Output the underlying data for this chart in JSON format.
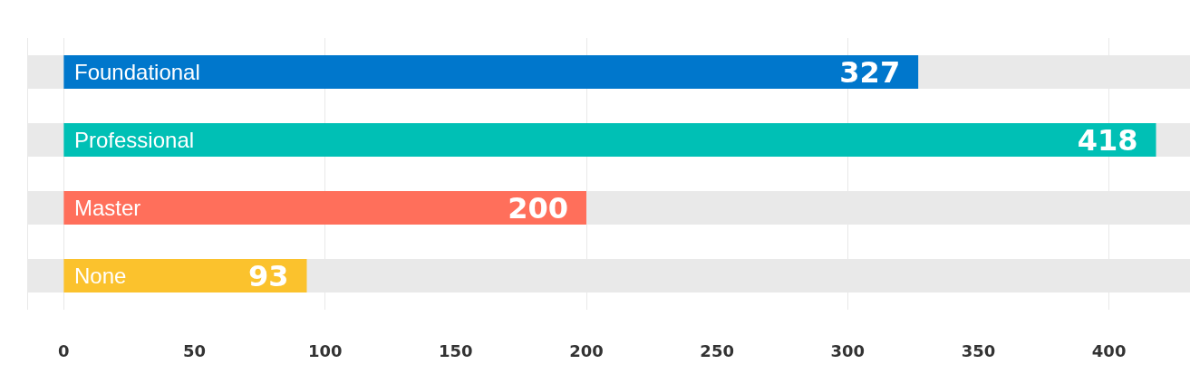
{
  "chart_data": {
    "type": "bar",
    "orientation": "horizontal",
    "categories": [
      "Foundational",
      "Professional",
      "Master",
      "None"
    ],
    "values": [
      327,
      418,
      200,
      93
    ],
    "colors": [
      "#0077cc",
      "#00c0b5",
      "#ff6f5b",
      "#fbc22d"
    ],
    "xlim": [
      -14,
      431
    ],
    "xticks": [
      0,
      50,
      100,
      150,
      200,
      250,
      300,
      350,
      400
    ],
    "grid": "x",
    "data_labels": true
  }
}
